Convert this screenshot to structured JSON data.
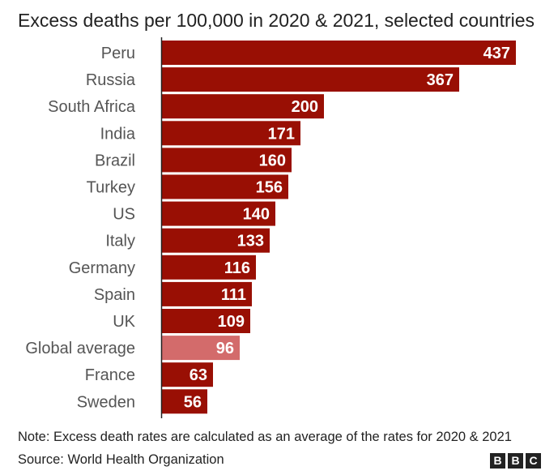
{
  "chart_data": {
    "type": "bar",
    "orientation": "horizontal",
    "title": "Excess deaths per 100,000 in 2020 & 2021, selected countries",
    "categories": [
      "Peru",
      "Russia",
      "South Africa",
      "India",
      "Brazil",
      "Turkey",
      "US",
      "Italy",
      "Germany",
      "Spain",
      "UK",
      "Global average",
      "France",
      "Sweden"
    ],
    "values": [
      437,
      367,
      200,
      171,
      160,
      156,
      140,
      133,
      116,
      111,
      109,
      96,
      63,
      56
    ],
    "highlight": "Global average",
    "xlim": [
      0,
      437
    ],
    "bar_color": "#990f04",
    "highlight_color": "#d36b6b",
    "note": "Note: Excess death rates are calculated as an average of the rates for 2020 & 2021",
    "source": "Source: World Health Organization"
  },
  "branding": {
    "letters": [
      "B",
      "B",
      "C"
    ]
  },
  "colors": {
    "text": "#222222",
    "axis": "#222222",
    "label_text": "#ffffff"
  }
}
